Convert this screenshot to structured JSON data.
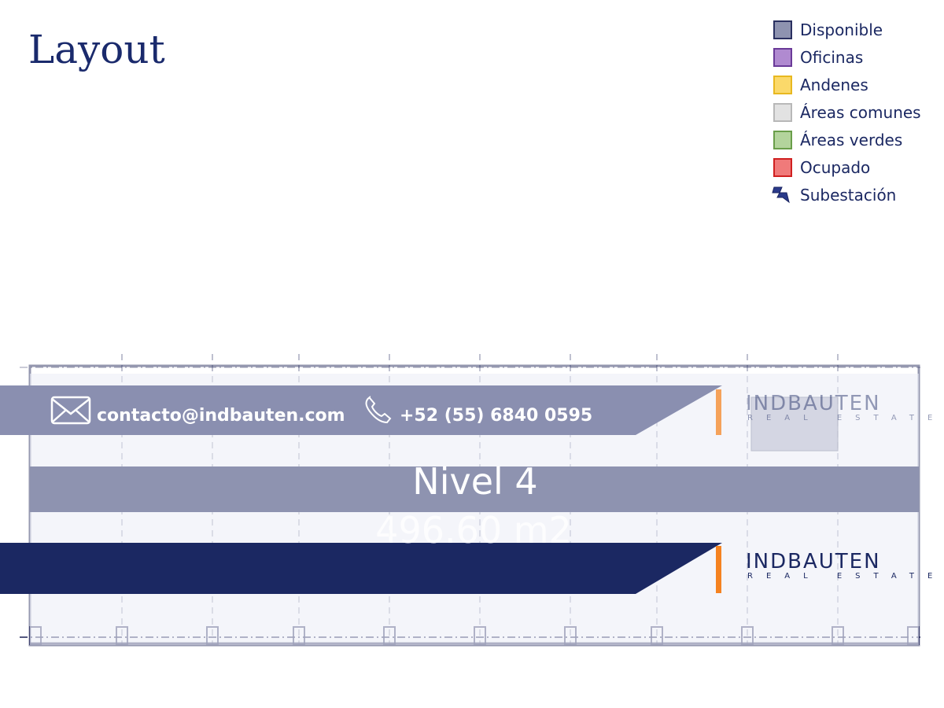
{
  "header": {
    "title": "Layout"
  },
  "legend": [
    {
      "label": "Disponible",
      "color": "#8e93b0",
      "border": "#2a3060"
    },
    {
      "label": "Oficinas",
      "color": "#b08ad0",
      "border": "#6a3a98"
    },
    {
      "label": "Andenes",
      "color": "#fbd96a",
      "border": "#e8b820"
    },
    {
      "label": "Áreas comunes",
      "color": "#e2e2e2",
      "border": "#b8b8b8"
    },
    {
      "label": "Áreas verdes",
      "color": "#b3d49c",
      "border": "#6a9e4a"
    },
    {
      "label": "Ocupado",
      "color": "#f07a7a",
      "border": "#d02020"
    },
    {
      "label": "Subestación",
      "color": "#2a3a8a",
      "border": "#1a2460",
      "icon": "bolt"
    }
  ],
  "contact": {
    "email": "contacto@indbauten.com",
    "phone": "+52 (55) 6840 0595"
  },
  "level": {
    "name": "Nivel 4",
    "area": "496.60 m2"
  },
  "brand": {
    "name": "INDBAUTEN",
    "tagline": "REAL ESTATE"
  }
}
